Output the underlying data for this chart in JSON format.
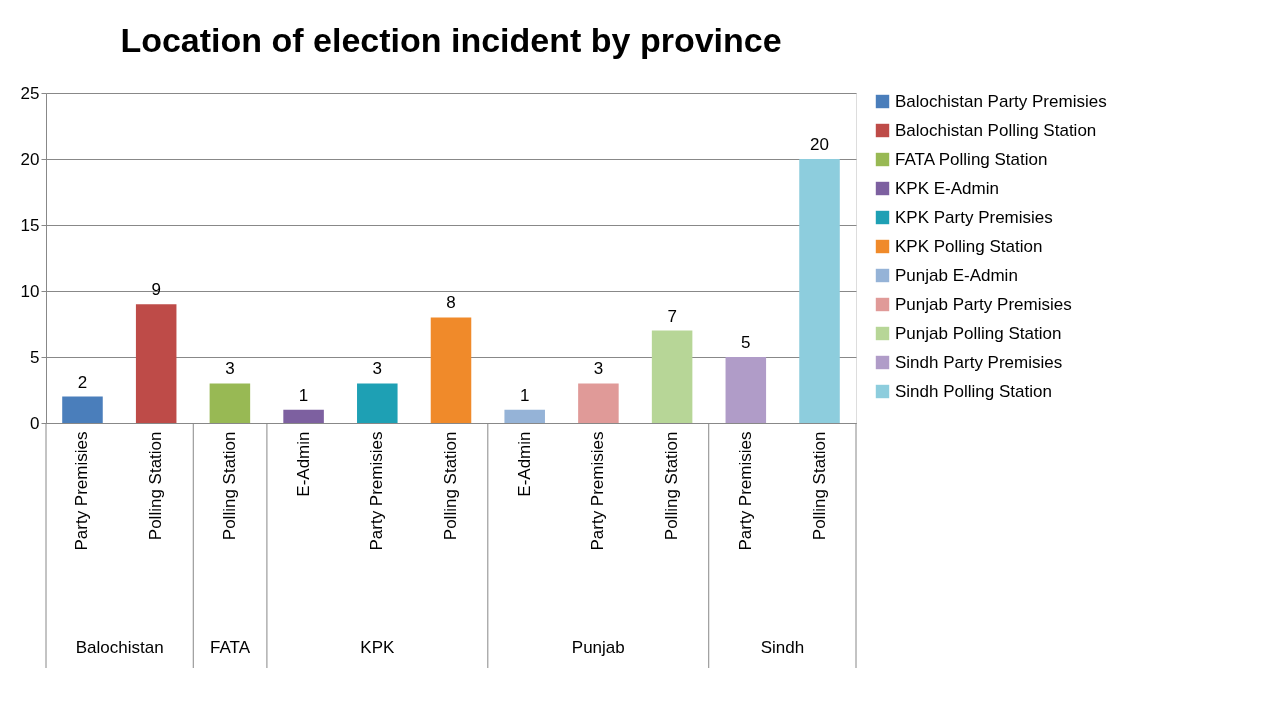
{
  "chart_data": {
    "type": "bar",
    "title": "Location of election incident by province",
    "categories": [
      "Party Premisies",
      "Polling Station",
      "Polling Station",
      "E-Admin",
      "Party Premisies",
      "Polling Station",
      "E-Admin",
      "Party Premisies",
      "Polling Station",
      "Party Premisies",
      "Polling Station"
    ],
    "annotations": [
      "Balochistan",
      "FATA",
      "KPK",
      "Punjab",
      "Sindh"
    ],
    "series": [
      {
        "name": "Balochistan Party Premisies",
        "color": "#4a7ebb",
        "values": [
          2,
          null,
          null,
          null,
          null,
          null,
          null,
          null,
          null,
          null,
          null
        ]
      },
      {
        "name": "Balochistan Polling Station",
        "color": "#be4b48",
        "values": [
          null,
          9,
          null,
          null,
          null,
          null,
          null,
          null,
          null,
          null,
          null
        ]
      },
      {
        "name": "FATA Polling Station",
        "color": "#98b954",
        "values": [
          null,
          null,
          3,
          null,
          null,
          null,
          null,
          null,
          null,
          null,
          null
        ]
      },
      {
        "name": "KPK E-Admin",
        "color": "#7d60a0",
        "values": [
          null,
          null,
          null,
          1,
          null,
          null,
          null,
          null,
          null,
          null,
          null
        ]
      },
      {
        "name": "KPK Party Premisies",
        "color": "#1ea0b4",
        "values": [
          null,
          null,
          null,
          null,
          3,
          null,
          null,
          null,
          null,
          null,
          null
        ]
      },
      {
        "name": "KPK Polling Station",
        "color": "#f08a2a",
        "values": [
          null,
          null,
          null,
          null,
          null,
          8,
          null,
          null,
          null,
          null,
          null
        ]
      },
      {
        "name": "Punjab E-Admin",
        "color": "#95b3d7",
        "values": [
          null,
          null,
          null,
          null,
          null,
          null,
          1,
          null,
          null,
          null,
          null
        ]
      },
      {
        "name": "Punjab Party Premisies",
        "color": "#e09a98",
        "values": [
          null,
          null,
          null,
          null,
          null,
          null,
          null,
          3,
          null,
          null,
          null
        ]
      },
      {
        "name": "Punjab Polling Station",
        "color": "#b7d697",
        "values": [
          null,
          null,
          null,
          null,
          null,
          null,
          null,
          null,
          7,
          null,
          null
        ]
      },
      {
        "name": "Sindh Party Premisies",
        "color": "#b09cc8",
        "values": [
          null,
          null,
          null,
          null,
          null,
          null,
          null,
          null,
          null,
          5,
          null
        ]
      },
      {
        "name": "Sindh Polling Station",
        "color": "#8dcddd",
        "values": [
          null,
          null,
          null,
          null,
          null,
          null,
          null,
          null,
          null,
          null,
          20
        ]
      }
    ],
    "ylim": [
      0,
      25
    ],
    "yticks": [
      0,
      5,
      10,
      15,
      20,
      25
    ],
    "grid": "y",
    "legend": "right",
    "data_labels": true
  }
}
